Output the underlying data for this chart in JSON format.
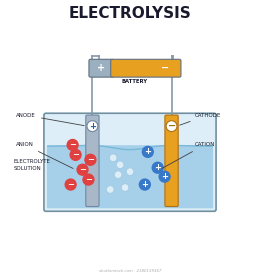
{
  "title": "ELECTROLYSIS",
  "title_fontsize": 11,
  "title_fontweight": "bold",
  "bg_color": "#ffffff",
  "battery_label": "BATTERY",
  "anode_label": "ANODE",
  "cathode_label": "CATHODE",
  "anion_label": "ANION",
  "cation_label": "CATION",
  "electrolyte_label": "ELECTROLYTE\nSOLUTION",
  "tank_fill_color": "#ddeef8",
  "tank_edge_color": "#7090a0",
  "water_color": "#a0cce8",
  "water_top_color": "#78b8d8",
  "anode_color": "#a8b8c8",
  "anode_edge_color": "#7088a0",
  "cathode_color": "#e8a020",
  "cathode_edge_color": "#b07010",
  "battery_orange_color": "#e8a020",
  "battery_gray_color": "#9ab0c0",
  "battery_edge_color": "#607080",
  "wire_color": "#8898a8",
  "anion_color": "#e04040",
  "cation_color": "#3878c8",
  "bubble_color": "#e8f4fc",
  "label_line_color": "#404040",
  "label_fontsize": 4.0,
  "shutterstock_text": "shutterstock.com · 2180139367"
}
